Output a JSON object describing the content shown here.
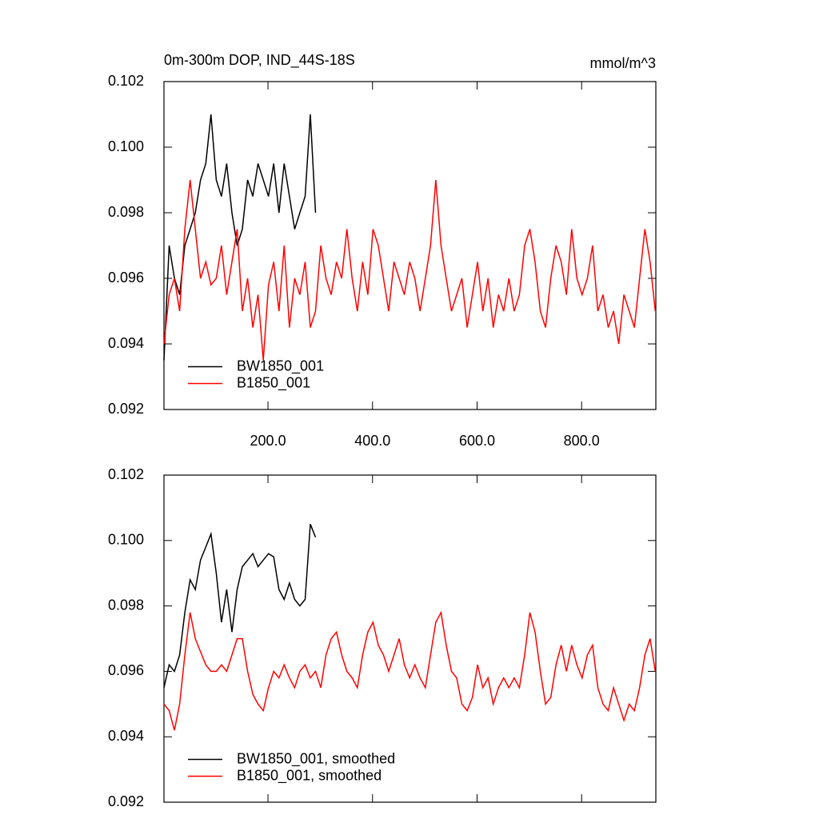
{
  "chart_data": [
    {
      "type": "line",
      "title": "0m-300m DOP, IND_44S-18S",
      "units": "mmol/m^3",
      "xlim": [
        1,
        942
      ],
      "xticks": [
        {
          "value": 200,
          "label": "200.0"
        },
        {
          "value": 400,
          "label": "400.0"
        },
        {
          "value": 600,
          "label": "600.0"
        },
        {
          "value": 800,
          "label": "800.0"
        }
      ],
      "ylim": [
        0.092,
        0.102
      ],
      "yticks": [
        0.092,
        0.094,
        0.096,
        0.098,
        {
          "value": 0.1,
          "label": "0.100"
        },
        0.102
      ],
      "legend": "lower left",
      "series": [
        {
          "name": "BW1850_001",
          "color": "#000000",
          "x": [
            1,
            11,
            21,
            31,
            41,
            51,
            61,
            71,
            81,
            91,
            101,
            111,
            121,
            131,
            141,
            151,
            161,
            171,
            181,
            191,
            201,
            211,
            221,
            231,
            241,
            251,
            261,
            271,
            281,
            291
          ],
          "values": [
            0.0935,
            0.097,
            0.096,
            0.0955,
            0.097,
            0.0975,
            0.098,
            0.099,
            0.0995,
            0.101,
            0.099,
            0.0985,
            0.0995,
            0.098,
            0.097,
            0.0975,
            0.099,
            0.0985,
            0.0995,
            0.099,
            0.0985,
            0.0995,
            0.098,
            0.0995,
            0.0985,
            0.0975,
            0.098,
            0.0985,
            0.101,
            0.098
          ]
        },
        {
          "name": "B1850_001",
          "color": "#ff0000",
          "x": [
            1,
            11,
            21,
            31,
            41,
            51,
            61,
            71,
            81,
            91,
            101,
            111,
            121,
            131,
            141,
            151,
            161,
            171,
            181,
            191,
            201,
            211,
            221,
            231,
            241,
            251,
            261,
            271,
            281,
            291,
            301,
            311,
            321,
            331,
            341,
            351,
            361,
            371,
            381,
            391,
            401,
            411,
            421,
            431,
            441,
            451,
            461,
            471,
            481,
            491,
            501,
            511,
            521,
            531,
            541,
            551,
            561,
            571,
            581,
            591,
            601,
            611,
            621,
            631,
            641,
            651,
            661,
            671,
            681,
            691,
            701,
            711,
            721,
            731,
            741,
            751,
            761,
            771,
            781,
            791,
            801,
            811,
            821,
            831,
            841,
            851,
            861,
            871,
            881,
            891,
            901,
            911,
            921,
            931,
            941
          ],
          "values": [
            0.094,
            0.0955,
            0.096,
            0.095,
            0.0975,
            0.099,
            0.0975,
            0.096,
            0.0965,
            0.0958,
            0.096,
            0.097,
            0.0955,
            0.0965,
            0.0975,
            0.095,
            0.096,
            0.0945,
            0.0955,
            0.0935,
            0.0958,
            0.0965,
            0.095,
            0.097,
            0.0945,
            0.096,
            0.0955,
            0.0965,
            0.0945,
            0.095,
            0.097,
            0.096,
            0.0955,
            0.0965,
            0.096,
            0.0975,
            0.096,
            0.095,
            0.0965,
            0.0955,
            0.0975,
            0.097,
            0.096,
            0.095,
            0.0965,
            0.096,
            0.0955,
            0.0965,
            0.096,
            0.095,
            0.096,
            0.097,
            0.099,
            0.097,
            0.096,
            0.095,
            0.0955,
            0.096,
            0.0945,
            0.0955,
            0.0965,
            0.095,
            0.096,
            0.0945,
            0.0955,
            0.095,
            0.096,
            0.095,
            0.0955,
            0.097,
            0.0975,
            0.0965,
            0.095,
            0.0945,
            0.096,
            0.097,
            0.0965,
            0.0955,
            0.0975,
            0.096,
            0.0955,
            0.096,
            0.097,
            0.095,
            0.0955,
            0.0945,
            0.095,
            0.094,
            0.0955,
            0.095,
            0.0945,
            0.096,
            0.0975,
            0.0965,
            0.095
          ]
        }
      ]
    },
    {
      "type": "line",
      "xlim": [
        1,
        942
      ],
      "xticks": [
        200,
        400,
        600,
        800
      ],
      "xtick_labels": false,
      "ylim": [
        0.092,
        0.102
      ],
      "yticks": [
        0.092,
        0.094,
        0.096,
        0.098,
        {
          "value": 0.1,
          "label": "0.100"
        },
        0.102
      ],
      "legend": "lower left",
      "series": [
        {
          "name": "BW1850_001, smoothed",
          "color": "#000000",
          "x": [
            1,
            11,
            21,
            31,
            41,
            51,
            61,
            71,
            81,
            91,
            101,
            111,
            121,
            131,
            141,
            151,
            161,
            171,
            181,
            191,
            201,
            211,
            221,
            231,
            241,
            251,
            261,
            271,
            281,
            291
          ],
          "values": [
            0.0955,
            0.0962,
            0.096,
            0.0965,
            0.0978,
            0.0988,
            0.0985,
            0.0994,
            0.0998,
            0.1002,
            0.099,
            0.0975,
            0.0985,
            0.0972,
            0.0985,
            0.0992,
            0.0994,
            0.0996,
            0.0992,
            0.0994,
            0.0996,
            0.0995,
            0.0985,
            0.0982,
            0.0987,
            0.0982,
            0.098,
            0.0982,
            0.1005,
            0.1001
          ]
        },
        {
          "name": "B1850_001, smoothed",
          "color": "#ff0000",
          "x": [
            1,
            11,
            21,
            31,
            41,
            51,
            61,
            71,
            81,
            91,
            101,
            111,
            121,
            131,
            141,
            151,
            161,
            171,
            181,
            191,
            201,
            211,
            221,
            231,
            241,
            251,
            261,
            271,
            281,
            291,
            301,
            311,
            321,
            331,
            341,
            351,
            361,
            371,
            381,
            391,
            401,
            411,
            421,
            431,
            441,
            451,
            461,
            471,
            481,
            491,
            501,
            511,
            521,
            531,
            541,
            551,
            561,
            571,
            581,
            591,
            601,
            611,
            621,
            631,
            641,
            651,
            661,
            671,
            681,
            691,
            701,
            711,
            721,
            731,
            741,
            751,
            761,
            771,
            781,
            791,
            801,
            811,
            821,
            831,
            841,
            851,
            861,
            871,
            881,
            891,
            901,
            911,
            921,
            931,
            941
          ],
          "values": [
            0.095,
            0.0948,
            0.0942,
            0.095,
            0.0965,
            0.0978,
            0.097,
            0.0966,
            0.0962,
            0.096,
            0.096,
            0.0962,
            0.096,
            0.0965,
            0.097,
            0.097,
            0.096,
            0.0953,
            0.095,
            0.0948,
            0.0955,
            0.096,
            0.0958,
            0.0962,
            0.0958,
            0.0955,
            0.096,
            0.0962,
            0.0958,
            0.096,
            0.0955,
            0.0965,
            0.097,
            0.0972,
            0.0965,
            0.096,
            0.0958,
            0.0955,
            0.0965,
            0.0972,
            0.0975,
            0.0968,
            0.0965,
            0.096,
            0.0965,
            0.097,
            0.0962,
            0.0958,
            0.0962,
            0.0958,
            0.0955,
            0.0965,
            0.0975,
            0.0978,
            0.0968,
            0.096,
            0.0958,
            0.095,
            0.0948,
            0.0952,
            0.0962,
            0.0955,
            0.0958,
            0.095,
            0.0955,
            0.0958,
            0.0955,
            0.0958,
            0.0955,
            0.0965,
            0.0978,
            0.0972,
            0.096,
            0.095,
            0.0952,
            0.0962,
            0.0968,
            0.096,
            0.0968,
            0.0962,
            0.0958,
            0.0965,
            0.0968,
            0.0955,
            0.095,
            0.0948,
            0.0955,
            0.095,
            0.0945,
            0.095,
            0.0948,
            0.0955,
            0.0965,
            0.097,
            0.096
          ]
        }
      ]
    }
  ]
}
